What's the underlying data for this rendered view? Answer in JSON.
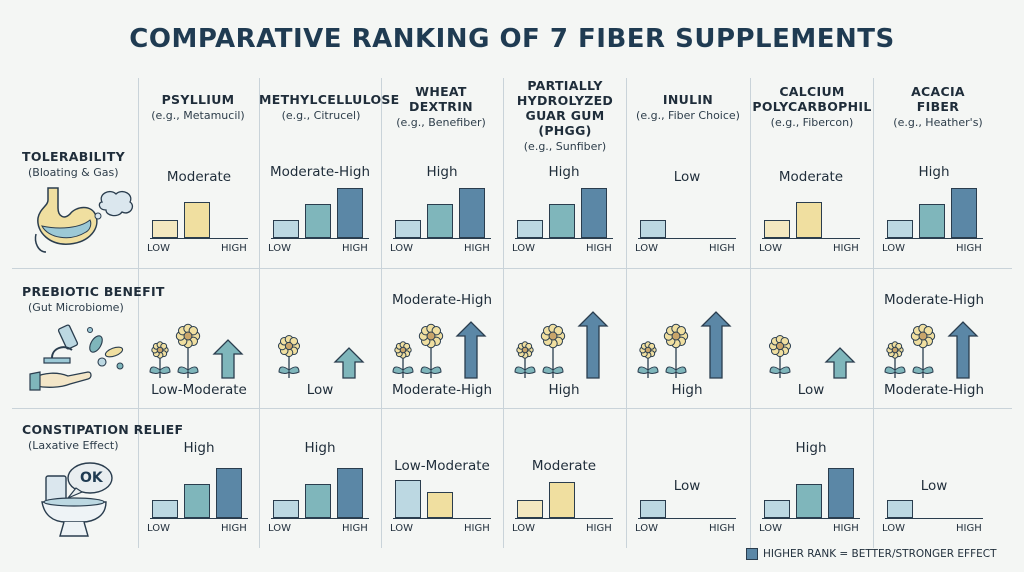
{
  "title": "COMPARATIVE RANKING OF 7 FIBER SUPPLEMENTS",
  "colors": {
    "low": "#bcd8e2",
    "yellow": "#f0dfa0",
    "mid": "#7fb6bb",
    "high": "#5b87a6",
    "arrow_teal": "#7fb6bb",
    "arrow_blue": "#5b87a6",
    "flower": "#f0dfa0"
  },
  "supplements": [
    {
      "name": "PSYLLIUM",
      "example": "(e.g., Metamucil)"
    },
    {
      "name": "METHYLCELLULOSE",
      "example": "(e.g., Citrucel)"
    },
    {
      "name": "WHEAT\nDEXTRIN",
      "example": "(e.g., Benefiber)"
    },
    {
      "name": "PARTIALLY\nHYDROLYZED\nGUAR GUM (PHGG)",
      "example": "(e.g., Sunfiber)"
    },
    {
      "name": "INULIN",
      "example": "(e.g., Fiber Choice)"
    },
    {
      "name": "CALCIUM\nPOLYCARBOPHIL",
      "example": "(e.g., Fibercon)"
    },
    {
      "name": "ACACIA\nFIBER",
      "example": "(e.g., Heather's)"
    }
  ],
  "rows": [
    {
      "title": "TOLERABILITY",
      "subtitle": "(Bloating & Gas)"
    },
    {
      "title": "PREBIOTIC BENEFIT",
      "subtitle": "(Gut Microbiome)"
    },
    {
      "title": "CONSTIPATION RELIEF",
      "subtitle": "(Laxative Effect)"
    }
  ],
  "axis": {
    "low": "LOW",
    "high": "HIGH"
  },
  "tolerability": [
    {
      "rating": "Moderate",
      "level": 2
    },
    {
      "rating": "Moderate-High",
      "level": 3
    },
    {
      "rating": "High",
      "level": 3
    },
    {
      "rating": "High",
      "level": 3
    },
    {
      "rating": "Low",
      "level": 1
    },
    {
      "rating": "Moderate",
      "level": 2
    },
    {
      "rating": "High",
      "level": 3
    }
  ],
  "prebiotic": [
    {
      "rating_top": "",
      "rating_bottom": "Low-Moderate",
      "level": 2
    },
    {
      "rating_top": "",
      "rating_bottom": "Low",
      "level": 1
    },
    {
      "rating_top": "Moderate-High",
      "rating_bottom": "Moderate-High",
      "level": 4
    },
    {
      "rating_top": "",
      "rating_bottom": "High",
      "level": 5
    },
    {
      "rating_top": "",
      "rating_bottom": "High",
      "level": 5
    },
    {
      "rating_top": "",
      "rating_bottom": "Low",
      "level": 1
    },
    {
      "rating_top": "Moderate-High",
      "rating_bottom": "Moderate-High",
      "level": 4
    }
  ],
  "constipation": [
    {
      "rating": "High",
      "level": 3
    },
    {
      "rating": "High",
      "level": 3
    },
    {
      "rating": "Low-Moderate",
      "level": 2
    },
    {
      "rating": "Moderate",
      "level": 2
    },
    {
      "rating": "Low",
      "level": 1
    },
    {
      "rating": "High",
      "level": 3
    },
    {
      "rating": "Low",
      "level": 1
    }
  ],
  "ok_bubble": "OK",
  "legend": "HIGHER RANK = BETTER/STRONGER EFFECT"
}
